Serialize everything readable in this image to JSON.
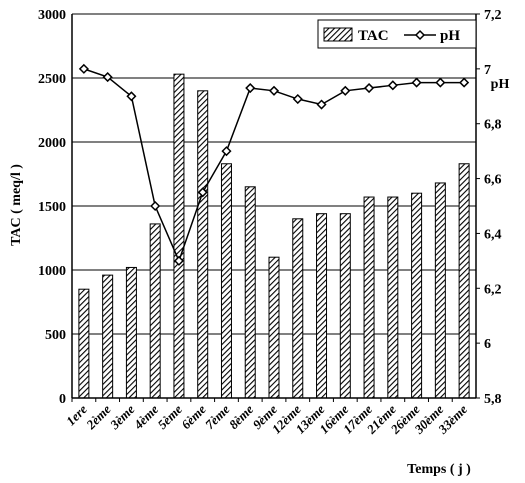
{
  "chart_data": {
    "type": "bar",
    "categories": [
      "1ere",
      "2ème",
      "3ème",
      "4ème",
      "5ème",
      "6ème",
      "7ème",
      "8ème",
      "9ème",
      "12ème",
      "13ème",
      "16ème",
      "17ème",
      "21ème",
      "26ème",
      "30ème",
      "33ème"
    ],
    "series": [
      {
        "name": "TAC",
        "type": "bar",
        "axis": "left",
        "values": [
          850,
          960,
          1020,
          1360,
          2530,
          2400,
          1830,
          1650,
          1100,
          1400,
          1440,
          1440,
          1570,
          1570,
          1600,
          1680,
          1830
        ]
      },
      {
        "name": "pH",
        "type": "line",
        "axis": "right",
        "values": [
          7.0,
          6.97,
          6.9,
          6.5,
          6.3,
          6.55,
          6.7,
          6.93,
          6.92,
          6.89,
          6.87,
          6.92,
          6.93,
          6.94,
          6.95,
          6.95,
          6.95
        ]
      }
    ],
    "ylabel": "TAC ( meq/l )",
    "y2label": "pH",
    "xlabel": "Temps ( j )",
    "ylim": [
      0,
      3000
    ],
    "y2lim": [
      5.8,
      7.2
    ],
    "yticks": [
      "0",
      "500",
      "1000",
      "1500",
      "2000",
      "2500",
      "3000"
    ],
    "y2ticks": [
      "5,8",
      "6",
      "6,2",
      "6,4",
      "6,6",
      "6,8",
      "7",
      "7,2"
    ],
    "grid": true,
    "legend_position": "top-right",
    "legend": [
      "TAC",
      "pH"
    ]
  }
}
